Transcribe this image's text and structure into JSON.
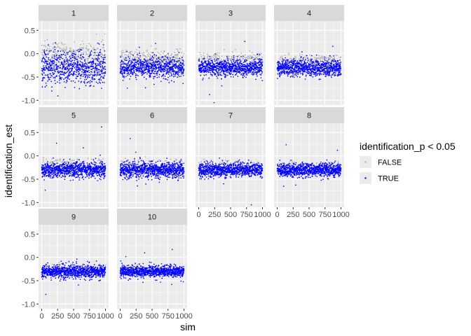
{
  "chart_data": {
    "type": "scatter",
    "facet_by": "panel",
    "panels": [
      "1",
      "2",
      "3",
      "4",
      "5",
      "6",
      "7",
      "8",
      "9",
      "10"
    ],
    "ncol": 4,
    "xlabel": "sim",
    "ylabel": "identification_est",
    "xlim": [
      0,
      1000
    ],
    "ylim": [
      -1.1,
      0.7
    ],
    "x_ticks": [
      0,
      250,
      500,
      750,
      1000
    ],
    "x_tick_labels": [
      "0",
      "250",
      "500",
      "750",
      "1000"
    ],
    "y_ticks": [
      0.5,
      0.0,
      -0.5,
      -1.0
    ],
    "y_tick_labels": [
      "0.5",
      "0.0",
      "-0.5",
      "-1.0"
    ],
    "legend": {
      "title": "identification_p < 0.05",
      "position": "right",
      "entries": [
        {
          "label": "FALSE",
          "color": "#A9A9A9"
        },
        {
          "label": "TRUE",
          "color": "#0000FF"
        }
      ]
    },
    "grid": true,
    "n_points_per_panel": 1000,
    "series": [
      {
        "panel": "1",
        "true_mean": -0.3,
        "true_sd": 0.17,
        "false_mean": -0.05,
        "false_sd": 0.16,
        "false_share": 0.3
      },
      {
        "panel": "2",
        "true_mean": -0.3,
        "true_sd": 0.11,
        "false_mean": -0.07,
        "false_sd": 0.08,
        "false_share": 0.22
      },
      {
        "panel": "3",
        "true_mean": -0.3,
        "true_sd": 0.09,
        "false_mean": -0.09,
        "false_sd": 0.06,
        "false_share": 0.14
      },
      {
        "panel": "4",
        "true_mean": -0.3,
        "true_sd": 0.09,
        "false_mean": -0.1,
        "false_sd": 0.05,
        "false_share": 0.09
      },
      {
        "panel": "5",
        "true_mean": -0.3,
        "true_sd": 0.08,
        "false_mean": -0.12,
        "false_sd": 0.04,
        "false_share": 0.06
      },
      {
        "panel": "6",
        "true_mean": -0.3,
        "true_sd": 0.08,
        "false_mean": -0.13,
        "false_sd": 0.04,
        "false_share": 0.03
      },
      {
        "panel": "7",
        "true_mean": -0.3,
        "true_sd": 0.07,
        "false_mean": -0.14,
        "false_sd": 0.03,
        "false_share": 0.03
      },
      {
        "panel": "8",
        "true_mean": -0.3,
        "true_sd": 0.07,
        "false_mean": -0.15,
        "false_sd": 0.03,
        "false_share": 0.02
      },
      {
        "panel": "9",
        "true_mean": -0.3,
        "true_sd": 0.07,
        "false_mean": -0.15,
        "false_sd": 0.03,
        "false_share": 0.01
      },
      {
        "panel": "10",
        "true_mean": -0.3,
        "true_sd": 0.06,
        "false_mean": -0.16,
        "false_sd": 0.02,
        "false_share": 0.005
      }
    ]
  },
  "colors": {
    "panel_background": "#EBEBEB",
    "grid_major": "#FFFFFF",
    "strip_background": "#D9D9D9",
    "true_point": "#0000FF",
    "false_point": "#A9A9A9"
  }
}
